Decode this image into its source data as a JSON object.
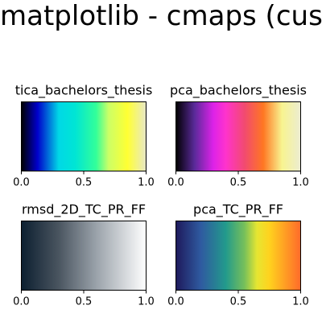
{
  "figure": {
    "suptitle": "matplotlib - cmaps (custom)"
  },
  "chart_data": [
    {
      "type": "heatmap",
      "title": "tica_bachelors_thesis",
      "xlim": [
        0.0,
        1.0
      ],
      "xticks": [
        "0.0",
        "0.5",
        "1.0"
      ],
      "yticks": [],
      "gradient": [
        {
          "pos": 0.0,
          "color": "#000000"
        },
        {
          "pos": 0.13,
          "color": "#0000cc"
        },
        {
          "pos": 0.3,
          "color": "#00d8e6"
        },
        {
          "pos": 0.43,
          "color": "#00e5d5"
        },
        {
          "pos": 0.6,
          "color": "#33ff99"
        },
        {
          "pos": 0.7,
          "color": "#ccff66"
        },
        {
          "pos": 0.85,
          "color": "#ffff33"
        },
        {
          "pos": 1.0,
          "color": "#e8e8c8"
        }
      ]
    },
    {
      "type": "heatmap",
      "title": "pca_bachelors_thesis",
      "xlim": [
        0.0,
        1.0
      ],
      "xticks": [
        "0.0",
        "0.5",
        "1.0"
      ],
      "yticks": [],
      "gradient": [
        {
          "pos": 0.0,
          "color": "#000000"
        },
        {
          "pos": 0.15,
          "color": "#5a2a9a"
        },
        {
          "pos": 0.3,
          "color": "#dd22e8"
        },
        {
          "pos": 0.4,
          "color": "#ff33cc"
        },
        {
          "pos": 0.55,
          "color": "#f24a70"
        },
        {
          "pos": 0.7,
          "color": "#ff7722"
        },
        {
          "pos": 0.85,
          "color": "#f8f490"
        },
        {
          "pos": 1.0,
          "color": "#ececd2"
        }
      ]
    },
    {
      "type": "heatmap",
      "title": "rmsd_2D_TC_PR_FF",
      "xlim": [
        0.0,
        1.0
      ],
      "xticks": [
        "0.0",
        "0.5",
        "1.0"
      ],
      "yticks": [],
      "gradient": [
        {
          "pos": 0.0,
          "color": "#0c1f30"
        },
        {
          "pos": 0.3,
          "color": "#4a5560"
        },
        {
          "pos": 0.6,
          "color": "#9aa2aa"
        },
        {
          "pos": 1.0,
          "color": "#ffffff"
        }
      ]
    },
    {
      "type": "heatmap",
      "title": "pca_TC_PR_FF",
      "xlim": [
        0.0,
        1.0
      ],
      "xticks": [
        "0.0",
        "0.5",
        "1.0"
      ],
      "yticks": [],
      "gradient": [
        {
          "pos": 0.0,
          "color": "#1e1a5c"
        },
        {
          "pos": 0.2,
          "color": "#2f5aa0"
        },
        {
          "pos": 0.4,
          "color": "#229a8c"
        },
        {
          "pos": 0.55,
          "color": "#77c05a"
        },
        {
          "pos": 0.65,
          "color": "#e6e632"
        },
        {
          "pos": 0.75,
          "color": "#ffd21e"
        },
        {
          "pos": 1.0,
          "color": "#ff6a2a"
        }
      ]
    }
  ]
}
